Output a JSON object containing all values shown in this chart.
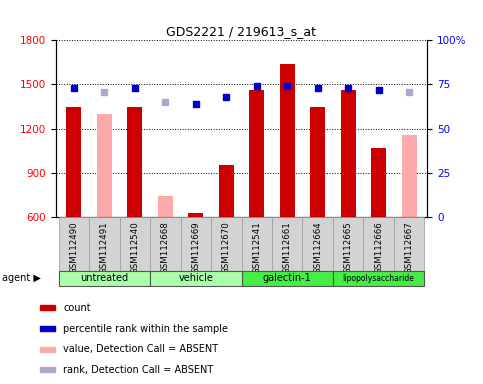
{
  "title": "GDS2221 / 219613_s_at",
  "samples": [
    "GSM112490",
    "GSM112491",
    "GSM112540",
    "GSM112668",
    "GSM112669",
    "GSM112670",
    "GSM112541",
    "GSM112661",
    "GSM112664",
    "GSM112665",
    "GSM112666",
    "GSM112667"
  ],
  "count_values": [
    1345,
    null,
    1345,
    null,
    630,
    950,
    1460,
    1640,
    1345,
    1460,
    1070,
    null
  ],
  "absent_values": [
    null,
    1300,
    null,
    740,
    null,
    null,
    null,
    null,
    null,
    null,
    null,
    1160
  ],
  "rank_values": [
    73,
    71,
    73,
    65,
    64,
    68,
    74,
    74,
    73,
    73,
    72,
    71
  ],
  "absent_rank": [
    null,
    71,
    null,
    65,
    null,
    null,
    null,
    null,
    null,
    null,
    null,
    71
  ],
  "ylim_left": [
    600,
    1800
  ],
  "ylim_right": [
    0,
    100
  ],
  "yticks_left": [
    600,
    900,
    1200,
    1500,
    1800
  ],
  "yticks_right": [
    0,
    25,
    50,
    75,
    100
  ],
  "bar_color": "#cc0000",
  "absent_bar_color": "#ffaaaa",
  "rank_color": "#0000cc",
  "absent_rank_color": "#aaaacc",
  "groups": [
    {
      "label": "untreated",
      "color": "#aaffaa",
      "start": 0,
      "end": 2
    },
    {
      "label": "vehicle",
      "color": "#aaffaa",
      "start": 3,
      "end": 5
    },
    {
      "label": "galectin-1",
      "color": "#44ee44",
      "start": 6,
      "end": 8
    },
    {
      "label": "lipopolysaccharide",
      "color": "#44ee44",
      "start": 9,
      "end": 11
    }
  ],
  "legend_items": [
    {
      "label": "count",
      "color": "#cc0000"
    },
    {
      "label": "percentile rank within the sample",
      "color": "#0000cc"
    },
    {
      "label": "value, Detection Call = ABSENT",
      "color": "#ffaaaa"
    },
    {
      "label": "rank, Detection Call = ABSENT",
      "color": "#aaaacc"
    }
  ]
}
